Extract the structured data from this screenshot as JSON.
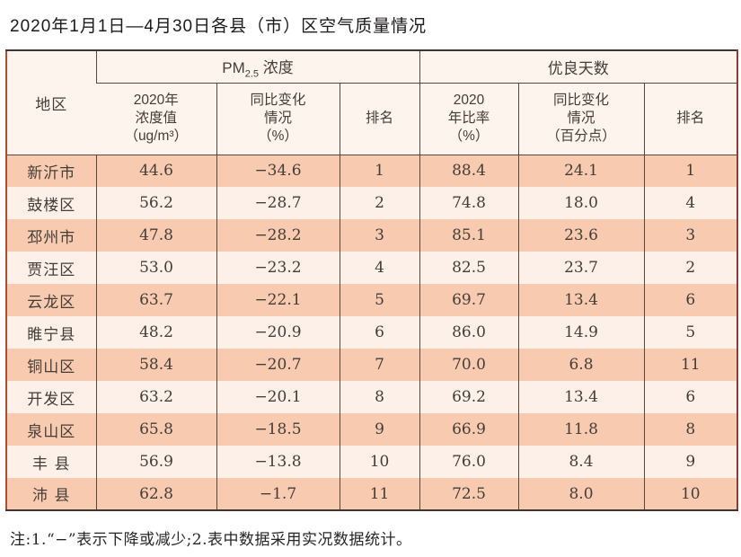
{
  "title": "2020年1月1日—4月30日各县（市）区空气质量情况",
  "table": {
    "region_header": "地区",
    "group_pm25": {
      "prefix": "PM",
      "sub": "2.5",
      "suffix": " 浓度"
    },
    "group_good_days": "优良天数",
    "subheaders": [
      "2020年\n浓度值\n（ug/m³）",
      "同比变化\n情况\n（%）",
      "排名",
      "2020\n年比率\n（%）",
      "同比变化\n情况\n（百分点）",
      "排名"
    ],
    "rows": [
      {
        "region": "新沂市",
        "values": [
          "44.6",
          "−34.6",
          "1",
          "88.4",
          "24.1",
          "1"
        ]
      },
      {
        "region": "鼓楼区",
        "values": [
          "56.2",
          "−28.7",
          "2",
          "74.8",
          "18.0",
          "4"
        ]
      },
      {
        "region": "邳州市",
        "values": [
          "47.8",
          "−28.2",
          "3",
          "85.1",
          "23.6",
          "3"
        ]
      },
      {
        "region": "贾汪区",
        "values": [
          "53.0",
          "−23.2",
          "4",
          "82.5",
          "23.7",
          "2"
        ]
      },
      {
        "region": "云龙区",
        "values": [
          "63.7",
          "−22.1",
          "5",
          "69.7",
          "13.4",
          "6"
        ]
      },
      {
        "region": "睢宁县",
        "values": [
          "48.2",
          "−20.9",
          "6",
          "86.0",
          "14.9",
          "5"
        ]
      },
      {
        "region": "铜山区",
        "values": [
          "58.4",
          "−20.7",
          "7",
          "70.0",
          "6.8",
          "11"
        ]
      },
      {
        "region": "开发区",
        "values": [
          "63.2",
          "−20.1",
          "8",
          "69.2",
          "13.4",
          "6"
        ]
      },
      {
        "region": "泉山区",
        "values": [
          "65.8",
          "−18.5",
          "9",
          "66.9",
          "11.8",
          "8"
        ]
      },
      {
        "region": "丰 县",
        "values": [
          "56.9",
          "−13.8",
          "10",
          "76.0",
          "8.4",
          "9"
        ]
      },
      {
        "region": "沛 县",
        "values": [
          "62.8",
          "−1.7",
          "11",
          "72.5",
          "8.0",
          "10"
        ]
      }
    ]
  },
  "note": "注:1.“−”表示下降或减少;2.表中数据采用实况数据统计。",
  "colors": {
    "row_stripe_dark": "#f8cbb0",
    "row_stripe_light": "#fdf0e8",
    "header_bg": "#fdf4ee",
    "grid_line": "#55483f",
    "frame_red": "#b34a33",
    "frame_red_right": "#864231",
    "frame_dark": "#3e3731",
    "text_dark": "#433d38",
    "title_color": "#1d1b1a"
  }
}
